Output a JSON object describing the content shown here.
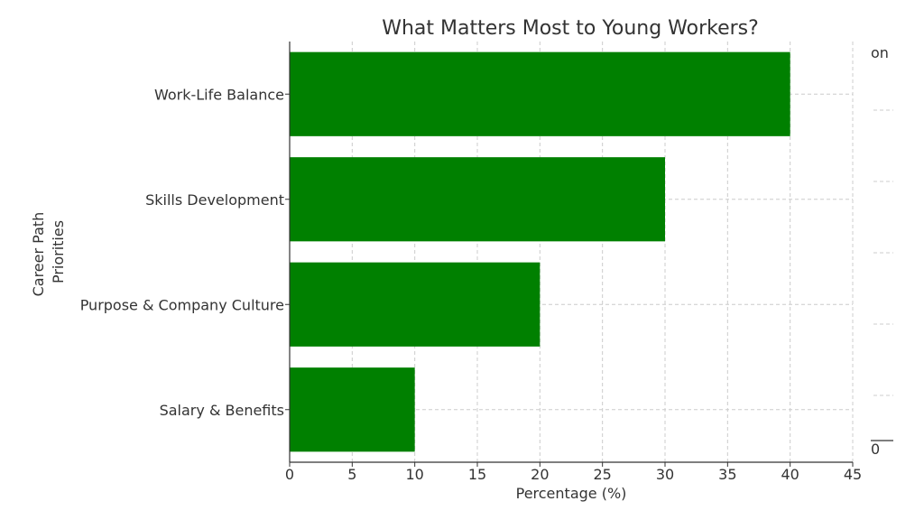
{
  "chart_data": {
    "type": "bar",
    "orientation": "horizontal",
    "title": "What Matters Most to Young Workers?",
    "xlabel": "Percentage (%)",
    "ylabel": "Career Path\nPriorities",
    "ylabel_lines": [
      "Career Path",
      "Priorities"
    ],
    "categories": [
      "Work-Life Balance",
      "Skills Development",
      "Purpose & Company Culture",
      "Salary & Benefits"
    ],
    "values": [
      40,
      30,
      20,
      10
    ],
    "xlim": [
      0,
      45
    ],
    "xticks": [
      0,
      5,
      10,
      15,
      20,
      25,
      30,
      35,
      40,
      45
    ],
    "grid": true,
    "bar_color": "#008000"
  },
  "background_fragment": {
    "top_text": "on",
    "bottom_text": "0"
  }
}
